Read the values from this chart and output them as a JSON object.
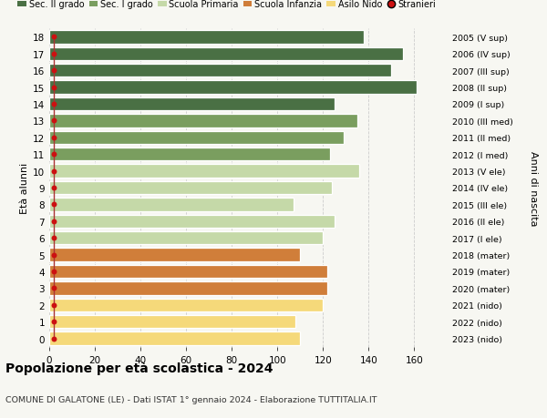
{
  "ages": [
    18,
    17,
    16,
    15,
    14,
    13,
    12,
    11,
    10,
    9,
    8,
    7,
    6,
    5,
    4,
    3,
    2,
    1,
    0
  ],
  "values": [
    138,
    155,
    150,
    161,
    125,
    135,
    129,
    123,
    136,
    124,
    107,
    125,
    120,
    110,
    122,
    122,
    120,
    108,
    110
  ],
  "stranieri": [
    2,
    2,
    2,
    2,
    2,
    2,
    2,
    2,
    2,
    2,
    2,
    2,
    2,
    2,
    2,
    2,
    2,
    2,
    2
  ],
  "right_labels": [
    "2005 (V sup)",
    "2006 (IV sup)",
    "2007 (III sup)",
    "2008 (II sup)",
    "2009 (I sup)",
    "2010 (III med)",
    "2011 (II med)",
    "2012 (I med)",
    "2013 (V ele)",
    "2014 (IV ele)",
    "2015 (III ele)",
    "2016 (II ele)",
    "2017 (I ele)",
    "2018 (mater)",
    "2019 (mater)",
    "2020 (mater)",
    "2021 (nido)",
    "2022 (nido)",
    "2023 (nido)"
  ],
  "bar_colors": [
    "#4a7044",
    "#4a7044",
    "#4a7044",
    "#4a7044",
    "#4a7044",
    "#7a9e5f",
    "#7a9e5f",
    "#7a9e5f",
    "#c5d9a8",
    "#c5d9a8",
    "#c5d9a8",
    "#c5d9a8",
    "#c5d9a8",
    "#d07e3a",
    "#d07e3a",
    "#d07e3a",
    "#f5d97a",
    "#f5d97a",
    "#f5d97a"
  ],
  "legend_labels": [
    "Sec. II grado",
    "Sec. I grado",
    "Scuola Primaria",
    "Scuola Infanzia",
    "Asilo Nido",
    "Stranieri"
  ],
  "legend_colors": [
    "#4a7044",
    "#7a9e5f",
    "#c5d9a8",
    "#d07e3a",
    "#f5d97a",
    "#cc1111"
  ],
  "ylabel": "Età alunni",
  "right_ylabel": "Anni di nascita",
  "title": "Popolazione per età scolastica - 2024",
  "subtitle": "COMUNE DI GALATONE (LE) - Dati ISTAT 1° gennaio 2024 - Elaborazione TUTTITALIA.IT",
  "xlim": [
    0,
    175
  ],
  "xticks": [
    0,
    20,
    40,
    60,
    80,
    100,
    120,
    140,
    160
  ],
  "background_color": "#f7f7f2",
  "grid_color": "#cccccc",
  "stranieri_color": "#cc1111",
  "stranieri_line_color": "#aa3333"
}
